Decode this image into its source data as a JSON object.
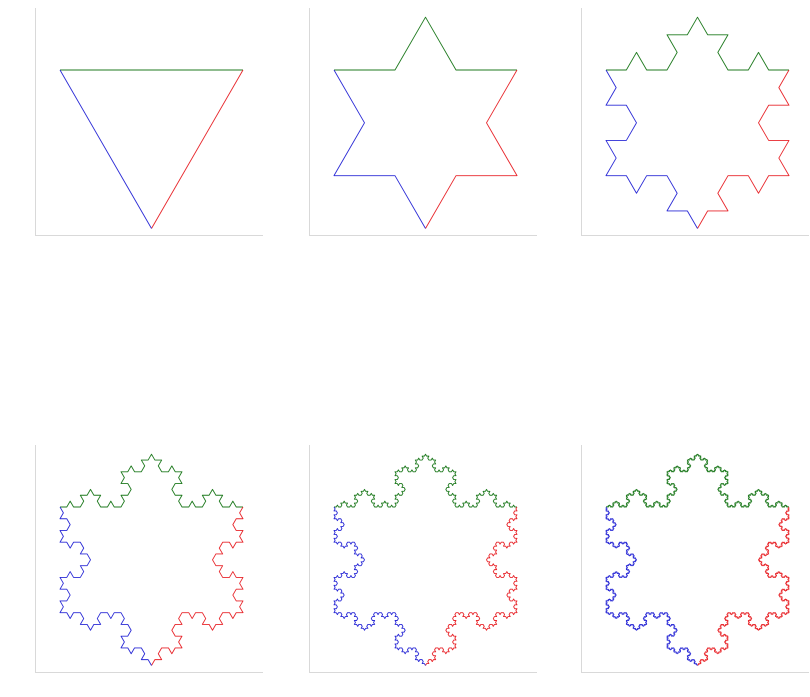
{
  "figure": {
    "description_type": "koch-snowflake-iterations",
    "panels": [
      {
        "iteration": 0
      },
      {
        "iteration": 1
      },
      {
        "iteration": 2
      },
      {
        "iteration": 3
      },
      {
        "iteration": 4
      },
      {
        "iteration": 5
      }
    ],
    "colors": {
      "top_side": "#1f7a1f",
      "right_side": "#e8262b",
      "left_side": "#2b2bd6",
      "frame": "#d9d9d9",
      "background": "#ffffff"
    }
  }
}
